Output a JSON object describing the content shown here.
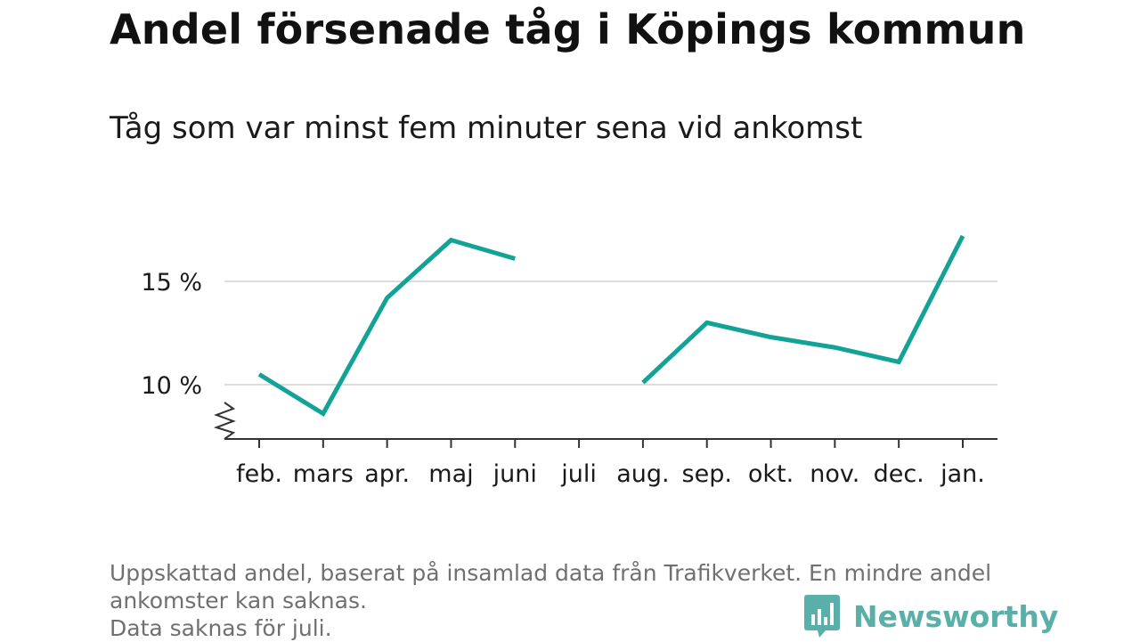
{
  "title": "Andel försenade tåg i Köpings kommun",
  "subtitle": "Tåg som var minst fem minuter sena vid ankomst",
  "footnote": {
    "line1": "Uppskattad andel, baserat på insamlad data från Trafikverket. En mindre andel",
    "line2": "ankomster kan saknas.",
    "line3": "Data saknas för juli."
  },
  "brand": {
    "name": "Newsworthy",
    "color": "#5ab0a8"
  },
  "colors": {
    "line": "#12a396",
    "grid": "#dddddd",
    "axis": "#333333"
  },
  "chart_data": {
    "type": "line",
    "categories": [
      "feb.",
      "mars",
      "apr.",
      "maj",
      "juni",
      "juli",
      "aug.",
      "sep.",
      "okt.",
      "nov.",
      "dec.",
      "jan."
    ],
    "series": [
      {
        "values": [
          10.5,
          8.6,
          14.2,
          17.0,
          16.1,
          null,
          10.1,
          13.0,
          12.3,
          11.8,
          11.1,
          17.2
        ]
      }
    ],
    "y_ticks": [
      10,
      15
    ],
    "y_tick_labels": [
      "10 %",
      "15 %"
    ],
    "ylim": [
      7.4,
      18.5
    ],
    "axis_break": true,
    "grid": true
  }
}
